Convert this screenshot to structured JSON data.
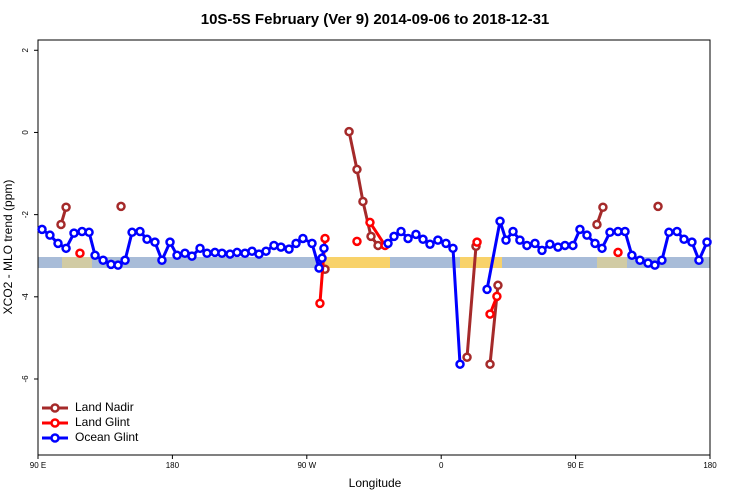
{
  "chart_data": {
    "type": "line",
    "title": "10S-5S February (Ver 9)   2014-09-06 to 2018-12-31",
    "x_label": "Longitude",
    "y_label": "XCO2 - MLO trend (ppm)",
    "xlim": [
      90,
      540
    ],
    "ylim": [
      -7.85,
      2.25
    ],
    "xticks": [
      {
        "value": 90,
        "label": "90 E"
      },
      180,
      {
        "value": 270,
        "label": "90 W"
      },
      {
        "value": 360,
        "label": "0"
      },
      {
        "value": 450,
        "label": "90 E"
      },
      {
        "value": 540,
        "label": "180"
      }
    ],
    "yticks": [
      -6,
      -4,
      -2,
      0,
      2
    ],
    "legend": "bottom-left",
    "series": [
      {
        "name": "Land Nadir",
        "color": "#a52a2a",
        "x": [
          105.4,
          108.8,
          null,
          145.6,
          null,
          282.2,
          null,
          298.3,
          303.6,
          307.6,
          313.0,
          317.7,
          null,
          377.3,
          383.3,
          null,
          392.7,
          398.0,
          null,
          464.3,
          468.3,
          null,
          505.2
        ],
        "values": [
          -2.24,
          -1.82,
          null,
          -1.8,
          null,
          -3.33,
          null,
          0.02,
          -0.9,
          -1.68,
          -2.53,
          -2.75,
          null,
          -5.47,
          -2.77,
          null,
          -5.64,
          -3.72,
          null,
          -2.24,
          -1.82,
          null,
          -1.8
        ]
      },
      {
        "name": "Land Glint",
        "color": "#ff0000",
        "x": [
          118.1,
          null,
          278.8,
          282.2,
          null,
          303.6,
          null,
          312.3,
          322.4,
          null,
          384.0,
          null,
          392.7,
          397.3,
          null,
          478.4
        ],
        "values": [
          -2.94,
          null,
          -4.16,
          -2.58,
          null,
          -2.65,
          null,
          -2.19,
          -2.75,
          null,
          -2.67,
          null,
          -4.42,
          -3.99,
          null,
          -2.92
        ]
      },
      {
        "name": "Ocean Glint",
        "color": "#0000ff",
        "x": [
          92.7,
          98.0,
          103.4,
          108.8,
          114.1,
          119.5,
          124.2,
          128.2,
          133.6,
          138.9,
          143.6,
          148.3,
          153.0,
          158.3,
          163.0,
          168.3,
          173.0,
          178.4,
          183.1,
          188.4,
          193.1,
          198.5,
          203.2,
          208.5,
          213.2,
          218.6,
          223.3,
          228.6,
          233.3,
          238.0,
          242.7,
          248.0,
          252.7,
          258.1,
          262.8,
          267.4,
          273.5,
          278.2,
          280.2,
          281.5,
          null,
          324.4,
          328.4,
          333.1,
          337.8,
          343.1,
          347.8,
          352.5,
          357.8,
          363.2,
          367.9,
          372.6,
          null,
          390.7,
          399.4,
          403.4,
          408.1,
          412.7,
          417.4,
          422.8,
          427.5,
          432.8,
          438.2,
          442.9,
          448.2,
          452.9,
          457.6,
          463.0,
          467.7,
          473.0,
          478.4,
          483.1,
          487.7,
          493.1,
          498.5,
          503.1,
          507.8,
          512.5,
          517.9,
          522.6,
          527.9,
          532.6,
          538.0
        ],
        "values": [
          -2.36,
          -2.5,
          -2.7,
          -2.82,
          -2.45,
          -2.41,
          -2.43,
          -2.99,
          -3.11,
          -3.21,
          -3.23,
          -3.11,
          -2.43,
          -2.41,
          -2.6,
          -2.67,
          -3.11,
          -2.67,
          -2.99,
          -2.94,
          -3.01,
          -2.82,
          -2.94,
          -2.92,
          -2.94,
          -2.96,
          -2.92,
          -2.94,
          -2.89,
          -2.96,
          -2.89,
          -2.75,
          -2.79,
          -2.84,
          -2.7,
          -2.58,
          -2.7,
          -3.3,
          -3.06,
          -2.82,
          null,
          -2.7,
          -2.53,
          -2.41,
          -2.58,
          -2.48,
          -2.6,
          -2.72,
          -2.62,
          -2.7,
          -2.82,
          -5.64,
          null,
          -3.82,
          -2.16,
          -2.62,
          -2.41,
          -2.62,
          -2.75,
          -2.7,
          -2.87,
          -2.72,
          -2.79,
          -2.75,
          -2.75,
          -2.36,
          -2.5,
          -2.7,
          -2.82,
          -2.43,
          -2.41,
          -2.41,
          -2.99,
          -3.11,
          -3.18,
          -3.23,
          -3.11,
          -2.43,
          -2.41,
          -2.6,
          -2.67,
          -3.11,
          -2.67
        ]
      }
    ]
  }
}
